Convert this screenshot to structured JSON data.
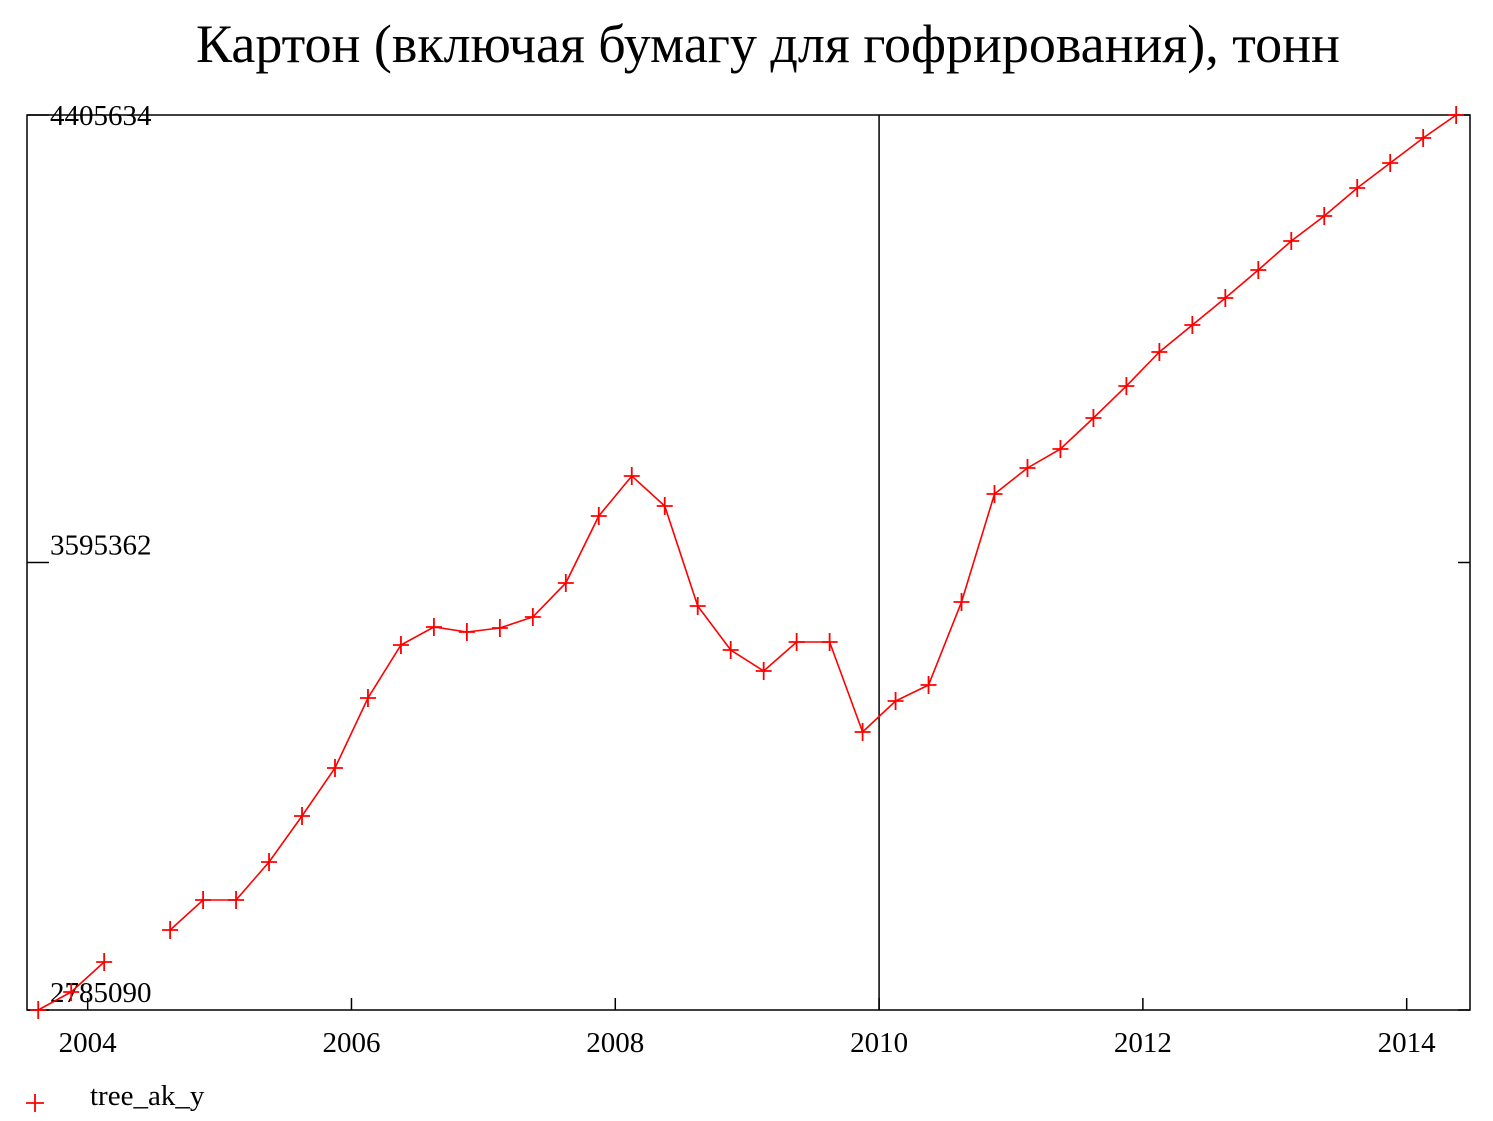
{
  "chart_data": {
    "type": "line",
    "title": "Картон (включая бумагу для гофрирования), тонн",
    "x": [
      2003.625,
      2003.875,
      2004.125,
      2004.375,
      2004.625,
      2004.875,
      2005.125,
      2005.375,
      2005.625,
      2005.875,
      2006.125,
      2006.375,
      2006.625,
      2006.875,
      2007.125,
      2007.375,
      2007.625,
      2007.875,
      2008.125,
      2008.375,
      2008.625,
      2008.875,
      2009.125,
      2009.375,
      2009.625,
      2009.875,
      2010.125,
      2010.375,
      2010.625,
      2010.875,
      2011.125,
      2011.375,
      2011.625,
      2011.875,
      2012.125,
      2012.375,
      2012.625,
      2012.875,
      2013.125,
      2013.375,
      2013.625,
      2013.875,
      2014.125,
      2014.375
    ],
    "series": [
      {
        "name": "tree_ak_y",
        "color": "#ff0000",
        "values": [
          2785090,
          2817683,
          2872004,
          null,
          2929946,
          2984267,
          2984267,
          3053074,
          3136366,
          3223280,
          3350031,
          3446000,
          3478593,
          3469540,
          3476783,
          3496700,
          3558264,
          3679581,
          3752009,
          3697688,
          3516617,
          3436948,
          3398923,
          3451433,
          3451433,
          3288468,
          3344600,
          3373572,
          3523860,
          3719416,
          3766494,
          3800898,
          3857030,
          3914973,
          3976537,
          4025425,
          4074314,
          4125013,
          4177523,
          4222791,
          4273490,
          4318758,
          4364026,
          4405634
        ]
      }
    ],
    "xlim": [
      2003.54,
      2014.48
    ],
    "xticks": [
      2004,
      2006,
      2008,
      2010,
      2012,
      2014
    ],
    "ylim": [
      2785090,
      4405634
    ],
    "yticks": [
      2785090,
      3595362,
      4405634
    ],
    "reference_line": 2010,
    "legend": "bottom-left"
  }
}
